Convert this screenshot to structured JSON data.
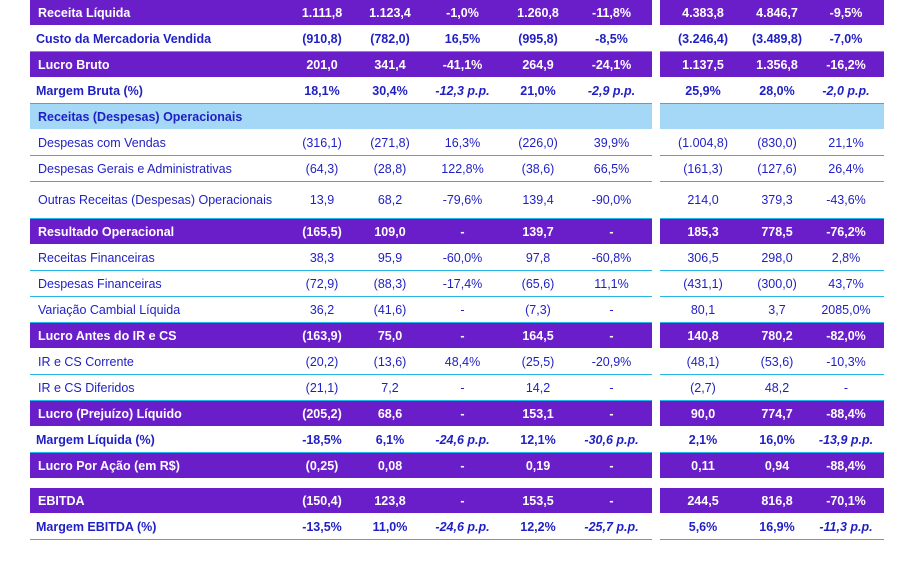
{
  "rows": [
    {
      "label": "Receita Líquida",
      "style": "purple",
      "v": [
        "1.111,8",
        "1.123,4",
        "-1,0%",
        "1.260,8",
        "-11,8%",
        "4.383,8",
        "4.846,7",
        "-9,5%"
      ]
    },
    {
      "label": "Custo da Mercadoria Vendida",
      "style": "cyan",
      "v": [
        "(910,8)",
        "(782,0)",
        "16,5%",
        "(995,8)",
        "-8,5%",
        "(3.246,4)",
        "(3.489,8)",
        "-7,0%"
      ]
    },
    {
      "label": "Lucro Bruto",
      "style": "purple",
      "v": [
        "201,0",
        "341,4",
        "-41,1%",
        "264,9",
        "-24,1%",
        "1.137,5",
        "1.356,8",
        "-16,2%"
      ]
    },
    {
      "label": "Margem Bruta (%)",
      "style": "cyan",
      "v": [
        "18,1%",
        "30,4%",
        "-12,3 p.p.",
        "21,0%",
        "-2,9 p.p.",
        "25,9%",
        "28,0%",
        "-2,0 p.p."
      ]
    },
    {
      "label": "Receitas (Despesas) Operacionais",
      "style": "section",
      "v": [
        "",
        "",
        "",
        "",
        "",
        "",
        "",
        ""
      ]
    },
    {
      "label": "Despesas com Vendas",
      "style": "normal",
      "v": [
        "(316,1)",
        "(271,8)",
        "16,3%",
        "(226,0)",
        "39,9%",
        "(1.004,8)",
        "(830,0)",
        "21,1%"
      ]
    },
    {
      "label": "Despesas Gerais e Administrativas",
      "style": "normal",
      "v": [
        "(64,3)",
        "(28,8)",
        "122,8%",
        "(38,6)",
        "66,5%",
        "(161,3)",
        "(127,6)",
        "26,4%"
      ]
    },
    {
      "label": "Outras Receitas (Despesas) Operacionais",
      "style": "normal tall",
      "v": [
        "13,9",
        "68,2",
        "-79,6%",
        "139,4",
        "-90,0%",
        "214,0",
        "379,3",
        "-43,6%"
      ]
    },
    {
      "label": "Resultado Operacional",
      "style": "purple",
      "v": [
        "(165,5)",
        "109,0",
        "-",
        "139,7",
        "-",
        "185,3",
        "778,5",
        "-76,2%"
      ]
    },
    {
      "label": "Receitas Financeiras",
      "style": "normal",
      "v": [
        "38,3",
        "95,9",
        "-60,0%",
        "97,8",
        "-60,8%",
        "306,5",
        "298,0",
        "2,8%"
      ]
    },
    {
      "label": "Despesas Financeiras",
      "style": "normal",
      "v": [
        "(72,9)",
        "(88,3)",
        "-17,4%",
        "(65,6)",
        "11,1%",
        "(431,1)",
        "(300,0)",
        "43,7%"
      ]
    },
    {
      "label": "Variação Cambial Líquida",
      "style": "normal",
      "v": [
        "36,2",
        "(41,6)",
        "-",
        "(7,3)",
        "-",
        "80,1",
        "3,7",
        "2085,0%"
      ]
    },
    {
      "label": "Lucro Antes do IR e CS",
      "style": "purple",
      "v": [
        "(163,9)",
        "75,0",
        "-",
        "164,5",
        "-",
        "140,8",
        "780,2",
        "-82,0%"
      ]
    },
    {
      "label": "IR e CS Corrente",
      "style": "normal",
      "v": [
        "(20,2)",
        "(13,6)",
        "48,4%",
        "(25,5)",
        "-20,9%",
        "(48,1)",
        "(53,6)",
        "-10,3%"
      ]
    },
    {
      "label": "IR e CS Diferidos",
      "style": "normal",
      "v": [
        "(21,1)",
        "7,2",
        "-",
        "14,2",
        "-",
        "(2,7)",
        "48,2",
        "-"
      ]
    },
    {
      "label": "Lucro (Prejuízo) Líquido",
      "style": "purple",
      "v": [
        "(205,2)",
        "68,6",
        "-",
        "153,1",
        "-",
        "90,0",
        "774,7",
        "-88,4%"
      ]
    },
    {
      "label": "Margem Líquida (%)",
      "style": "cyan",
      "v": [
        "-18,5%",
        "6,1%",
        "-24,6 p.p.",
        "12,1%",
        "-30,6 p.p.",
        "2,1%",
        "16,0%",
        "-13,9 p.p."
      ]
    },
    {
      "label": "Lucro Por Ação (em R$)",
      "style": "purple",
      "v": [
        "(0,25)",
        "0,08",
        "-",
        "0,19",
        "-",
        "0,11",
        "0,94",
        "-88,4%"
      ]
    },
    {
      "label": "",
      "style": "spacer",
      "v": [
        "",
        "",
        "",
        "",
        "",
        "",
        "",
        ""
      ]
    },
    {
      "label": "EBITDA",
      "style": "purple",
      "v": [
        "(150,4)",
        "123,8",
        "-",
        "153,5",
        "-",
        "244,5",
        "816,8",
        "-70,1%"
      ]
    },
    {
      "label": "Margem EBITDA (%)",
      "style": "cyan",
      "v": [
        "-13,5%",
        "11,0%",
        "-24,6 p.p.",
        "12,2%",
        "-25,7 p.p.",
        "5,6%",
        "16,9%",
        "-11,3 p.p."
      ]
    }
  ],
  "colors": {
    "purple": "#6a1ec9",
    "section": "#a5d7f6",
    "text_blue": "#1f1fc4",
    "rule": "#27b6e8"
  }
}
